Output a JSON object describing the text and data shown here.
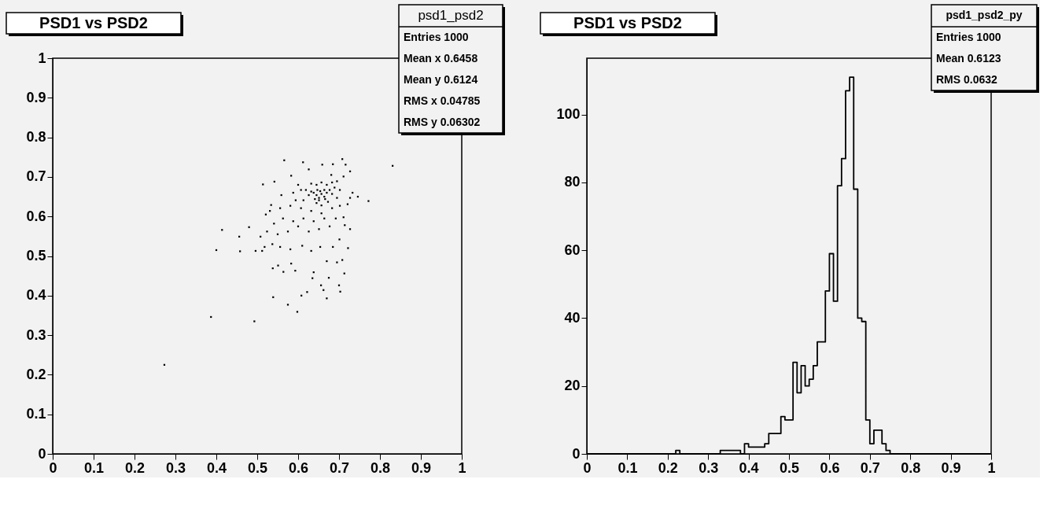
{
  "chart_data": [
    {
      "type": "scatter",
      "title": "PSD1 vs PSD2",
      "color": "#000000",
      "marker": "square",
      "annotations": [
        "psd1_psd2",
        "Entries 1000",
        "Mean x 0.6458",
        "Mean y 0.6124",
        "RMS x 0.04785",
        "RMS y 0.06302"
      ],
      "x": [
        0.273,
        0.387,
        0.493,
        0.831,
        0.414,
        0.4,
        0.566,
        0.708,
        0.612,
        0.659,
        0.685,
        0.716,
        0.727,
        0.626,
        0.514,
        0.542,
        0.583,
        0.681,
        0.711,
        0.772,
        0.746,
        0.733,
        0.559,
        0.534,
        0.521,
        0.48,
        0.456,
        0.458,
        0.496,
        0.512,
        0.538,
        0.539,
        0.575,
        0.598,
        0.608,
        0.67,
        0.703,
        0.7,
        0.662,
        0.656,
        0.675,
        0.713,
        0.635,
        0.622,
        0.593,
        0.564,
        0.551,
        0.583,
        0.638,
        0.67,
        0.695,
        0.708,
        0.722,
        0.727,
        0.714,
        0.701,
        0.685,
        0.654,
        0.632,
        0.61,
        0.581,
        0.556,
        0.537,
        0.518,
        0.508,
        0.524,
        0.55,
        0.575,
        0.6,
        0.626,
        0.651,
        0.677,
        0.692,
        0.711,
        0.664,
        0.638,
        0.613,
        0.588,
        0.563,
        0.541,
        0.531,
        0.556,
        0.581,
        0.607,
        0.632,
        0.657,
        0.683,
        0.702,
        0.721,
        0.727,
        0.638,
        0.645,
        0.651,
        0.657,
        0.664,
        0.67,
        0.677,
        0.683,
        0.689,
        0.651,
        0.645,
        0.657,
        0.664,
        0.632,
        0.626,
        0.619,
        0.613,
        0.67,
        0.683,
        0.695,
        0.657,
        0.645,
        0.632,
        0.702,
        0.695,
        0.673,
        0.666,
        0.654,
        0.647,
        0.641,
        0.607,
        0.6,
        0.594,
        0.588
      ],
      "values": [
        0.225,
        0.346,
        0.335,
        0.728,
        0.566,
        0.515,
        0.742,
        0.745,
        0.737,
        0.731,
        0.732,
        0.731,
        0.714,
        0.719,
        0.681,
        0.688,
        0.703,
        0.705,
        0.701,
        0.639,
        0.65,
        0.66,
        0.654,
        0.629,
        0.605,
        0.573,
        0.549,
        0.512,
        0.513,
        0.513,
        0.469,
        0.396,
        0.377,
        0.359,
        0.4,
        0.393,
        0.41,
        0.426,
        0.414,
        0.426,
        0.445,
        0.456,
        0.444,
        0.409,
        0.463,
        0.46,
        0.476,
        0.481,
        0.459,
        0.487,
        0.484,
        0.49,
        0.52,
        0.568,
        0.578,
        0.542,
        0.523,
        0.523,
        0.513,
        0.526,
        0.517,
        0.523,
        0.53,
        0.523,
        0.549,
        0.562,
        0.555,
        0.562,
        0.575,
        0.562,
        0.568,
        0.575,
        0.595,
        0.598,
        0.595,
        0.588,
        0.595,
        0.588,
        0.595,
        0.582,
        0.614,
        0.621,
        0.627,
        0.621,
        0.614,
        0.608,
        0.621,
        0.627,
        0.631,
        0.647,
        0.66,
        0.654,
        0.647,
        0.657,
        0.65,
        0.66,
        0.667,
        0.657,
        0.673,
        0.641,
        0.634,
        0.628,
        0.667,
        0.663,
        0.654,
        0.667,
        0.641,
        0.68,
        0.686,
        0.689,
        0.686,
        0.68,
        0.683,
        0.667,
        0.647,
        0.637,
        0.644,
        0.664,
        0.667,
        0.644,
        0.667,
        0.68,
        0.641,
        0.66
      ],
      "xlim": [
        0,
        1
      ],
      "ylim": [
        0,
        1
      ],
      "xticks": [
        0,
        0.1,
        0.2,
        0.3,
        0.4,
        0.5,
        0.6,
        0.7,
        0.8,
        0.9,
        1
      ],
      "yticks": [
        0,
        0.1,
        0.2,
        0.3,
        0.4,
        0.5,
        0.6,
        0.7,
        0.8,
        0.9,
        1
      ]
    },
    {
      "type": "histogram",
      "title": "PSD1 vs PSD2",
      "color": "#000000",
      "annotations": [
        "psd1_psd2_py",
        "Entries 1000",
        "Mean 0.6123",
        "RMS 0.0632"
      ],
      "bins": [
        0,
        0.01,
        0.02,
        0.03,
        0.04,
        0.05,
        0.06,
        0.07,
        0.08,
        0.09,
        0.1,
        0.11,
        0.12,
        0.13,
        0.14,
        0.15,
        0.16,
        0.17,
        0.18,
        0.19,
        0.2,
        0.21,
        0.22,
        0.23,
        0.24,
        0.25,
        0.26,
        0.27,
        0.28,
        0.29,
        0.3,
        0.31,
        0.32,
        0.33,
        0.34,
        0.35,
        0.36,
        0.37,
        0.38,
        0.39,
        0.4,
        0.41,
        0.42,
        0.43,
        0.44,
        0.45,
        0.46,
        0.47,
        0.48,
        0.49,
        0.5,
        0.51,
        0.52,
        0.53,
        0.54,
        0.55,
        0.56,
        0.57,
        0.58,
        0.59,
        0.6,
        0.61,
        0.62,
        0.63,
        0.64,
        0.65,
        0.66,
        0.67,
        0.68,
        0.69,
        0.7,
        0.71,
        0.72,
        0.73,
        0.74,
        0.75,
        0.76,
        0.77,
        0.78,
        0.79,
        0.8,
        0.81,
        0.82,
        0.83,
        0.84,
        0.85,
        0.86,
        0.87,
        0.88,
        0.89,
        0.9,
        0.91,
        0.92,
        0.93,
        0.94,
        0.95,
        0.96,
        0.97,
        0.98,
        0.99,
        1
      ],
      "values": [
        0,
        0,
        0,
        0,
        0,
        0,
        0,
        0,
        0,
        0,
        0,
        0,
        0,
        0,
        0,
        0,
        0,
        0,
        0,
        0,
        0,
        0,
        1,
        0,
        0,
        0,
        0,
        0,
        0,
        0,
        0,
        0,
        0,
        1,
        1,
        1,
        1,
        1,
        0,
        3,
        2,
        2,
        2,
        2,
        3,
        6,
        6,
        6,
        11,
        10,
        10,
        27,
        18,
        26,
        20,
        22,
        26,
        33,
        33,
        48,
        59,
        45,
        79,
        87,
        107,
        111,
        78,
        40,
        39,
        10,
        3,
        7,
        7,
        3,
        1,
        0,
        0,
        0,
        0,
        0,
        0,
        0,
        0,
        0,
        0,
        0,
        0,
        0,
        0,
        0,
        0,
        0,
        0,
        0,
        0,
        0,
        0,
        0,
        0,
        0
      ],
      "xlim": [
        0,
        1
      ],
      "ylim": [
        0,
        116.6
      ],
      "xticks": [
        0,
        0.1,
        0.2,
        0.3,
        0.4,
        0.5,
        0.6,
        0.7,
        0.8,
        0.9,
        1
      ],
      "yticks": [
        0,
        20,
        40,
        60,
        80,
        100
      ]
    }
  ]
}
